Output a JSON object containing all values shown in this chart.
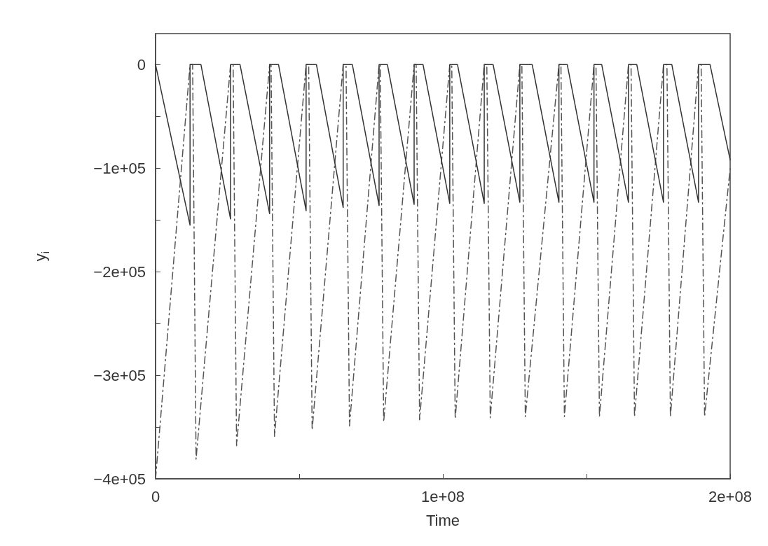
{
  "chart_data": {
    "type": "line",
    "xlabel": "Time",
    "ylabel": "y$_{i}$",
    "xlim": [
      0,
      200000000
    ],
    "ylim": [
      -400000,
      30000
    ],
    "xticks": [
      0,
      {
        "value": 50000000,
        "label": null
      },
      {
        "value": 100000000,
        "label": "1e+08"
      },
      {
        "value": 150000000,
        "label": null
      },
      {
        "value": 200000000,
        "label": "2e+08"
      }
    ],
    "yticks": [
      {
        "value": -400000,
        "label": "−4e+05"
      },
      {
        "value": -350000,
        "label": null
      },
      {
        "value": -300000,
        "label": "−3e+05"
      },
      {
        "value": -250000,
        "label": null
      },
      {
        "value": -200000,
        "label": "−2e+05"
      },
      {
        "value": -150000,
        "label": null
      },
      {
        "value": -100000,
        "label": "−1e+05"
      },
      {
        "value": -50000,
        "label": null
      },
      0
    ],
    "grid": false,
    "marker": "none",
    "series": [
      {
        "color": "#333333",
        "line_style": "solid",
        "x": [
          0,
          12000000,
          12000000,
          15800000,
          26100000,
          26100000,
          29400000,
          39700000,
          39700000,
          42800000,
          52400000,
          52400000,
          56000000,
          65300000,
          65300000,
          68500000,
          77800000,
          77800000,
          80700000,
          90000000,
          90000000,
          93100000,
          102400000,
          102400000,
          105100000,
          114400000,
          114400000,
          117500000,
          126800000,
          126800000,
          131100000,
          140400000,
          140400000,
          143300000,
          152600000,
          152600000,
          155300000,
          164600000,
          164600000,
          167500000,
          176800000,
          176800000,
          179700000,
          189000000,
          189000000,
          193000000,
          200000000
        ],
        "values": [
          0,
          -155000,
          0,
          0,
          -149000,
          0,
          0,
          -144000,
          0,
          0,
          -141000,
          0,
          0,
          -138000,
          0,
          0,
          -136000,
          0,
          0,
          -135000,
          0,
          0,
          -134000,
          0,
          0,
          -134000,
          0,
          0,
          -133000,
          0,
          0,
          -133000,
          0,
          0,
          -133000,
          0,
          0,
          -133000,
          0,
          0,
          -133000,
          0,
          0,
          -133000,
          0,
          0,
          -92000
        ]
      },
      {
        "color": "#555555",
        "line_style": "dashed",
        "x": [
          0,
          12000000,
          12900000,
          14100000,
          26100000,
          27000000,
          28200000,
          39700000,
          40200000,
          41400000,
          52400000,
          53300000,
          54500000,
          65300000,
          66300000,
          67500000,
          77800000,
          78200000,
          79400000,
          90000000,
          90700000,
          91900000,
          102400000,
          103100000,
          104300000,
          114400000,
          115300000,
          116500000,
          126800000,
          127500000,
          128700000,
          140400000,
          141100000,
          142300000,
          152600000,
          153300000,
          154500000,
          164600000,
          165500000,
          166700000,
          176800000,
          178000000,
          179200000,
          189000000,
          189900000,
          191100000,
          200000000
        ],
        "values": [
          -400000,
          0,
          0,
          -381000,
          0,
          0,
          -368000,
          0,
          0,
          -359000,
          0,
          0,
          -353000,
          0,
          0,
          -349000,
          0,
          0,
          -345000,
          0,
          0,
          -343000,
          0,
          0,
          -342000,
          0,
          0,
          -341000,
          0,
          0,
          -340000,
          0,
          0,
          -340000,
          0,
          0,
          -340000,
          0,
          0,
          -340000,
          0,
          0,
          -340000,
          0,
          0,
          -340000,
          -100000
        ]
      }
    ]
  }
}
